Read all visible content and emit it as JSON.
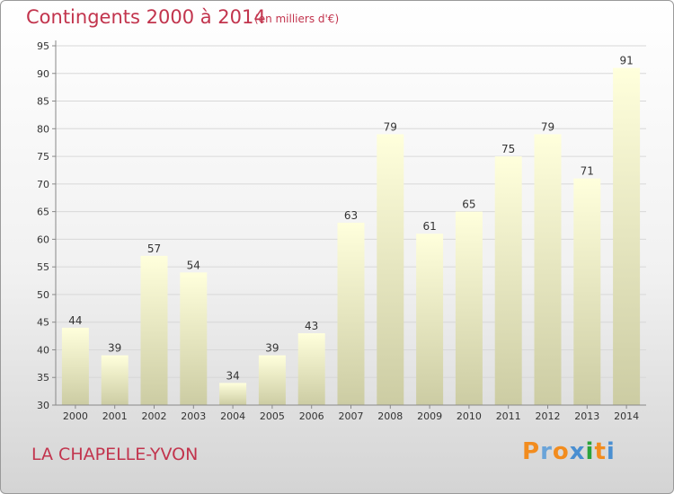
{
  "page": {
    "title": "Contingents 2000 à 2014",
    "subtitle": "(en milliers d'€)",
    "place": "LA CHAPELLE-YVON",
    "logo": "Proxiti"
  },
  "colors": {
    "title": "#c2344d",
    "bar_top": "#ffffdc",
    "bar_bottom": "#cccca3",
    "grid": "#d8d8d8",
    "axis": "#888888",
    "logo_letters": [
      "#f28c1e",
      "#6aa4d9",
      "#f28c1e",
      "#4a8fd1",
      "#2ba33a",
      "#f28c1e",
      "#4a8fd1"
    ]
  },
  "chart_data": {
    "type": "bar",
    "title": "Contingents 2000 à 2014",
    "categories": [
      "2000",
      "2001",
      "2002",
      "2003",
      "2004",
      "2005",
      "2006",
      "2007",
      "2008",
      "2009",
      "2010",
      "2011",
      "2012",
      "2013",
      "2014"
    ],
    "values": [
      44,
      39,
      57,
      54,
      34,
      39,
      43,
      63,
      79,
      61,
      65,
      75,
      79,
      71,
      91
    ],
    "data_labels": [
      "44",
      "39",
      "57",
      "54",
      "34",
      "39",
      "43",
      "63",
      "79",
      "61",
      "65",
      "75",
      "79",
      "71",
      "91"
    ],
    "yticks": [
      "30",
      "35",
      "40",
      "45",
      "50",
      "55",
      "60",
      "65",
      "70",
      "75",
      "80",
      "85",
      "90",
      "95"
    ],
    "ylim": [
      30,
      95
    ],
    "xlabel": "",
    "ylabel": "",
    "grid": true,
    "legend": "none"
  }
}
